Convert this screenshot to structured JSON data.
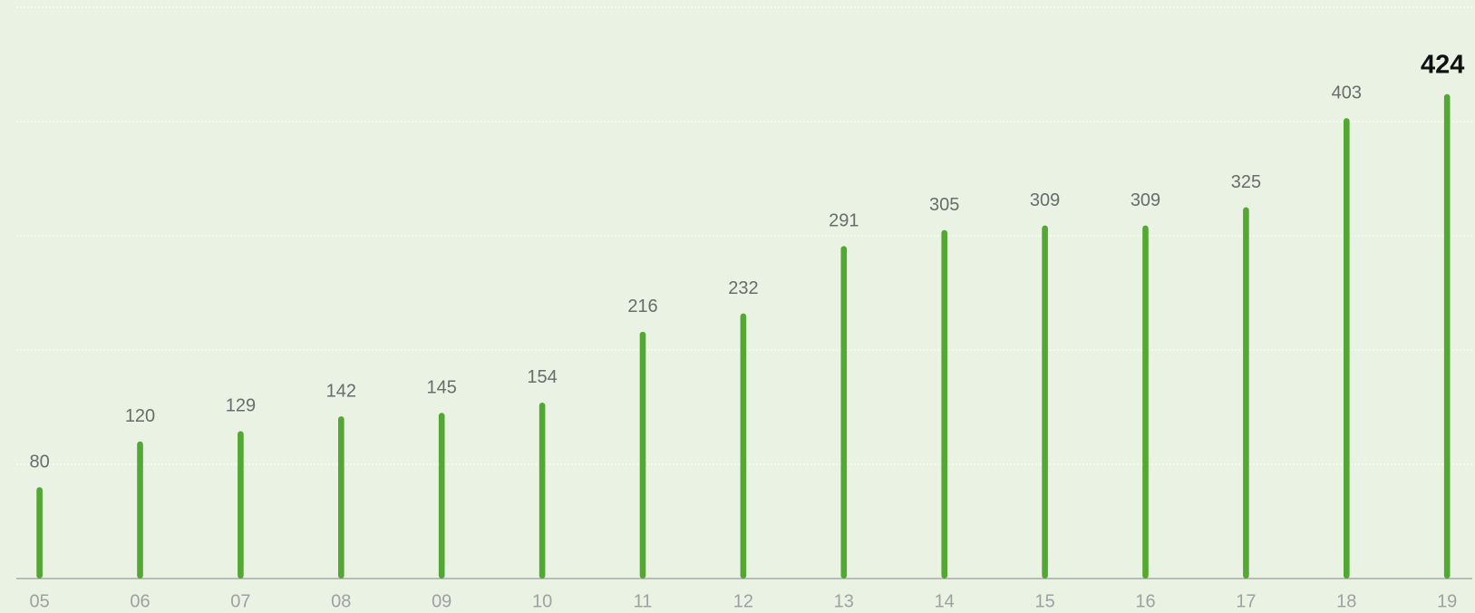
{
  "chart_data": {
    "type": "bar",
    "categories": [
      "05",
      "06",
      "07",
      "08",
      "09",
      "10",
      "11",
      "12",
      "13",
      "14",
      "15",
      "16",
      "17",
      "18",
      "19"
    ],
    "values": [
      80,
      120,
      129,
      142,
      145,
      154,
      216,
      232,
      291,
      305,
      309,
      309,
      325,
      403,
      424
    ],
    "color": "#52a832",
    "ylim": [
      0,
      500
    ],
    "yticks": [
      0,
      100,
      200,
      300,
      400,
      500
    ],
    "grid": true
  }
}
